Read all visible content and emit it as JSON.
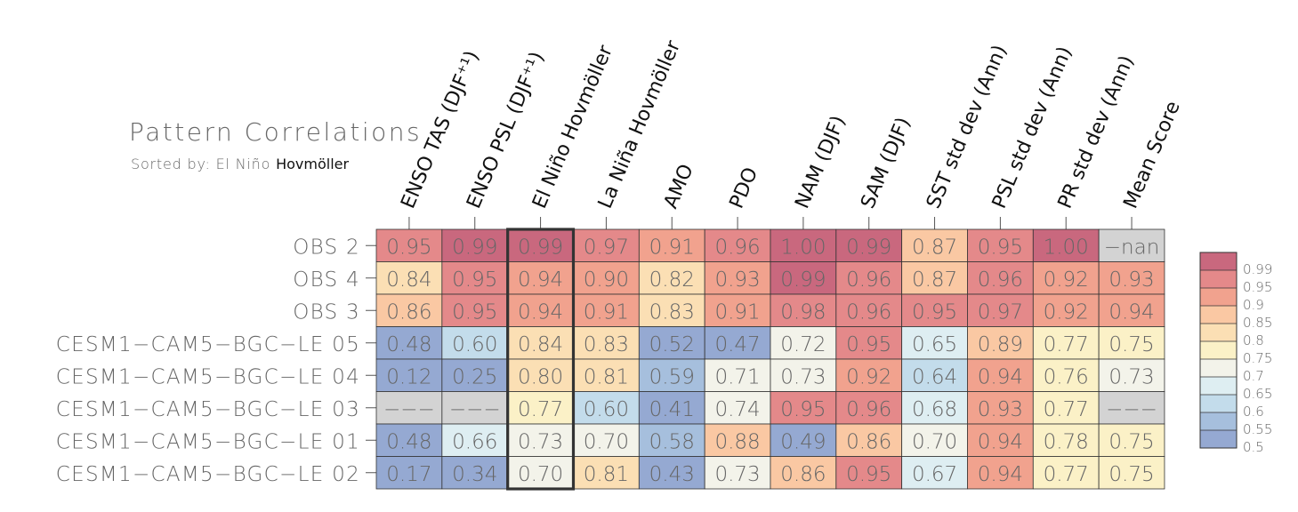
{
  "chart_data": {
    "type": "heatmap",
    "title": "Pattern Correlations",
    "subtitle_prefix": "Sorted by: El Niño ",
    "subtitle_bold": "Hovmöller",
    "columns": [
      "ENSO TAS (DJF⁺¹)",
      "ENSO PSL (DJF⁺¹)",
      "El Niño Hovmöller",
      "La Niña Hovmöller",
      "AMO",
      "PDO",
      "NAM (DJF)",
      "SAM (DJF)",
      "SST std dev (Ann)",
      "PSL std dev (Ann)",
      "PR std dev (Ann)",
      "Mean Score"
    ],
    "rows": [
      "OBS 2",
      "OBS 4",
      "OBS 3",
      "CESM1−CAM5−BGC−LE 05",
      "CESM1−CAM5−BGC−LE 04",
      "CESM1−CAM5−BGC−LE 03",
      "CESM1−CAM5−BGC−LE 01",
      "CESM1−CAM5−BGC−LE 02"
    ],
    "values": [
      [
        0.95,
        0.99,
        0.99,
        0.97,
        0.91,
        0.96,
        1.0,
        0.99,
        0.87,
        0.95,
        1.0,
        null
      ],
      [
        0.84,
        0.95,
        0.94,
        0.9,
        0.82,
        0.93,
        0.99,
        0.96,
        0.87,
        0.96,
        0.92,
        0.93
      ],
      [
        0.86,
        0.95,
        0.94,
        0.91,
        0.83,
        0.91,
        0.98,
        0.96,
        0.95,
        0.97,
        0.92,
        0.94
      ],
      [
        0.48,
        0.6,
        0.84,
        0.83,
        0.52,
        0.47,
        0.72,
        0.95,
        0.65,
        0.89,
        0.77,
        0.75
      ],
      [
        0.12,
        0.25,
        0.8,
        0.81,
        0.59,
        0.71,
        0.73,
        0.92,
        0.64,
        0.94,
        0.76,
        0.73
      ],
      [
        null,
        null,
        0.77,
        0.6,
        0.41,
        0.74,
        0.95,
        0.96,
        0.68,
        0.93,
        0.77,
        null
      ],
      [
        0.48,
        0.66,
        0.73,
        0.7,
        0.58,
        0.88,
        0.49,
        0.86,
        0.7,
        0.94,
        0.78,
        0.75
      ],
      [
        0.17,
        0.34,
        0.7,
        0.81,
        0.43,
        0.73,
        0.86,
        0.95,
        0.67,
        0.94,
        0.77,
        0.75
      ]
    ],
    "cell_labels": [
      [
        "0.95",
        "0.99",
        "0.99",
        "0.97",
        "0.91",
        "0.96",
        "1.00",
        "0.99",
        "0.87",
        "0.95",
        "1.00",
        "−nan"
      ],
      [
        "0.84",
        "0.95",
        "0.94",
        "0.90",
        "0.82",
        "0.93",
        "0.99",
        "0.96",
        "0.87",
        "0.96",
        "0.92",
        "0.93"
      ],
      [
        "0.86",
        "0.95",
        "0.94",
        "0.91",
        "0.83",
        "0.91",
        "0.98",
        "0.96",
        "0.95",
        "0.97",
        "0.92",
        "0.94"
      ],
      [
        "0.48",
        "0.60",
        "0.84",
        "0.83",
        "0.52",
        "0.47",
        "0.72",
        "0.95",
        "0.65",
        "0.89",
        "0.77",
        "0.75"
      ],
      [
        "0.12",
        "0.25",
        "0.80",
        "0.81",
        "0.59",
        "0.71",
        "0.73",
        "0.92",
        "0.64",
        "0.94",
        "0.76",
        "0.73"
      ],
      [
        "−−−",
        "−−−",
        "0.77",
        "0.60",
        "0.41",
        "0.74",
        "0.95",
        "0.96",
        "0.68",
        "0.93",
        "0.77",
        "−−−"
      ],
      [
        "0.48",
        "0.66",
        "0.73",
        "0.70",
        "0.58",
        "0.88",
        "0.49",
        "0.86",
        "0.70",
        "0.94",
        "0.78",
        "0.75"
      ],
      [
        "0.17",
        "0.34",
        "0.70",
        "0.81",
        "0.43",
        "0.73",
        "0.86",
        "0.95",
        "0.67",
        "0.94",
        "0.77",
        "0.75"
      ]
    ],
    "nan_cells_color": "#d3d3d3",
    "highlight_column": 2,
    "colorbar": {
      "labels": [
        "0.99",
        "0.95",
        "0.9",
        "0.85",
        "0.8",
        "0.75",
        "0.7",
        "0.65",
        "0.6",
        "0.55",
        "0.5"
      ],
      "colors": [
        "#c9687e",
        "#e4898a",
        "#f1a28e",
        "#fac8a3",
        "#fbdfb4",
        "#fbf1c7",
        "#f3f3ea",
        "#deeef2",
        "#c3dceb",
        "#a6bfdd",
        "#95a9d2"
      ],
      "legend_placement": "right"
    },
    "legend_placement": "right"
  }
}
